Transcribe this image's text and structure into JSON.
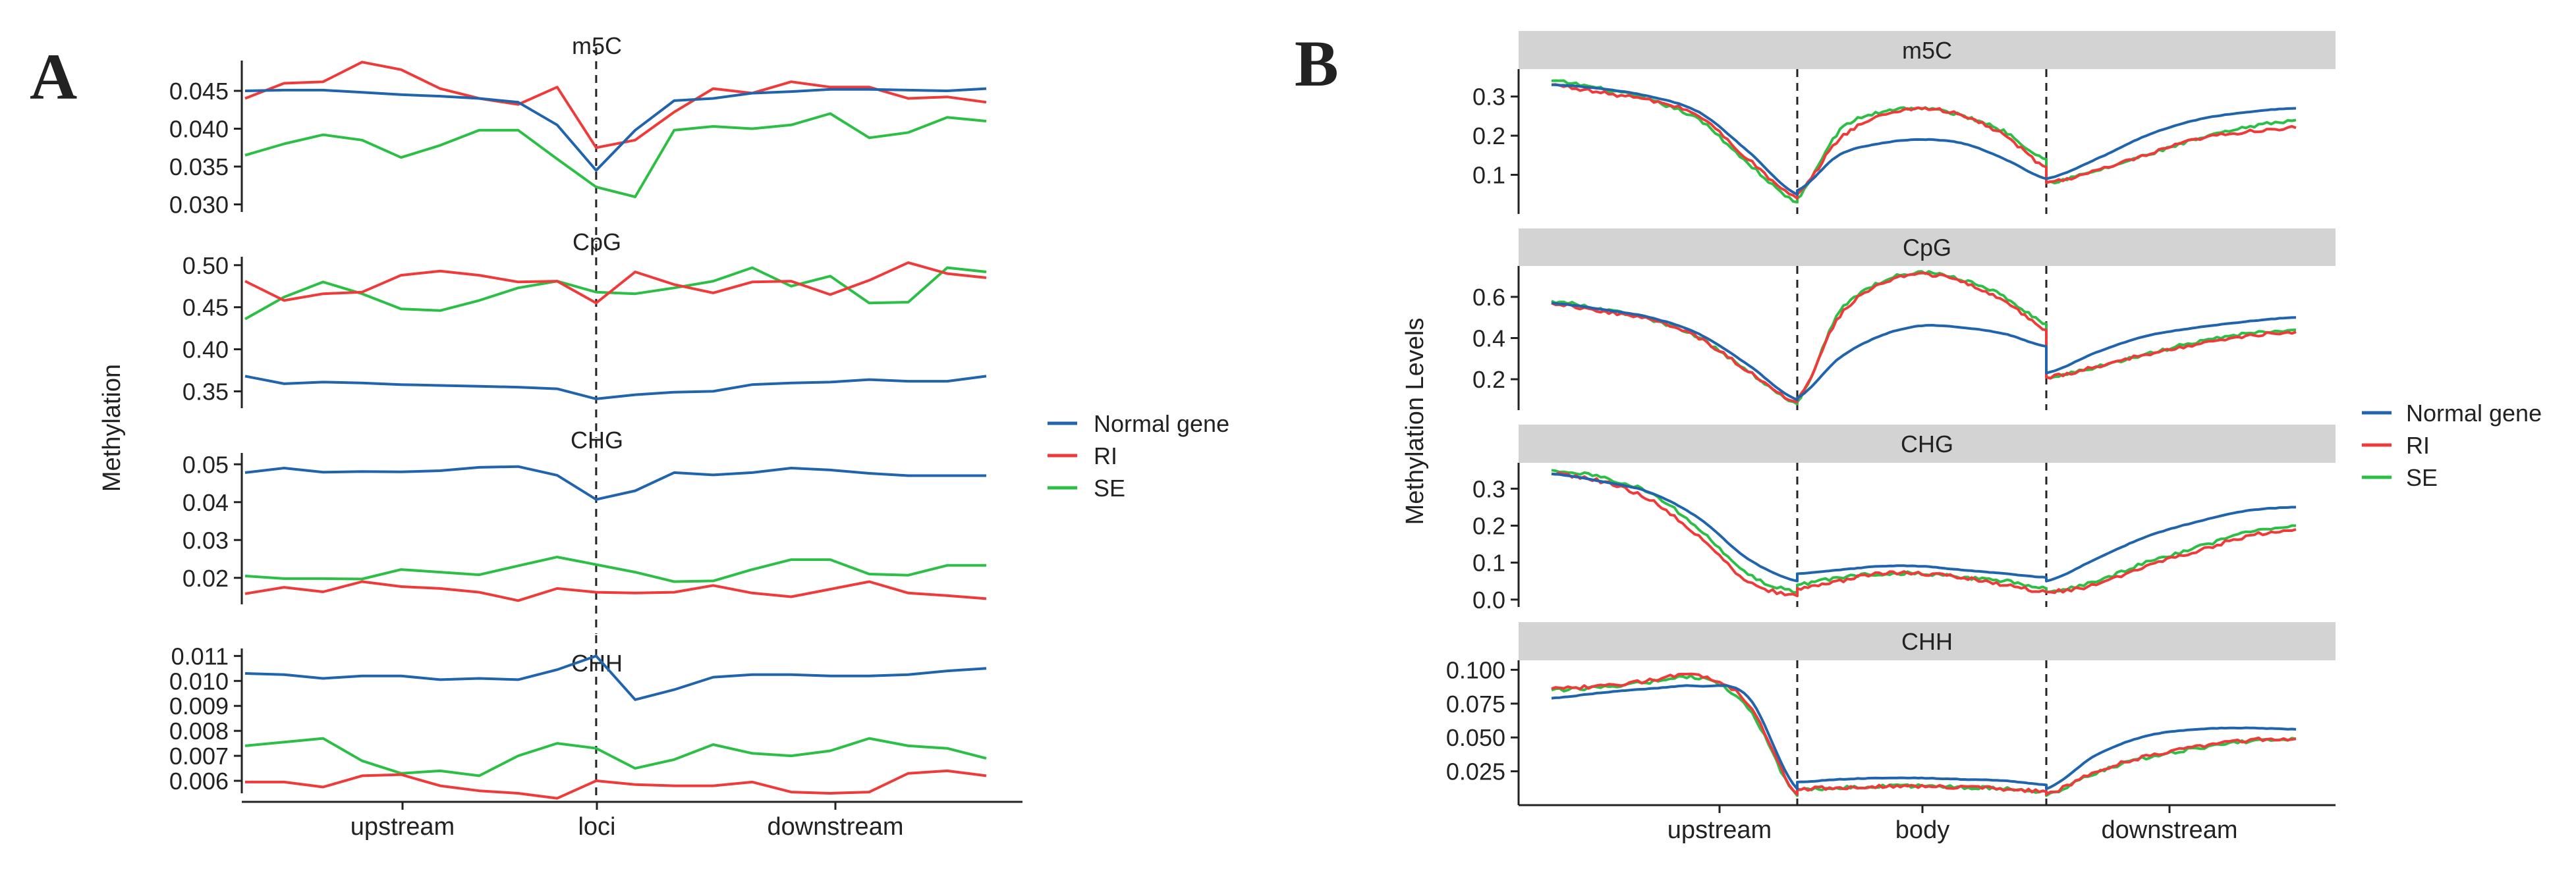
{
  "colors": {
    "normal": "#1f64ad",
    "ri": "#f03a3a",
    "se": "#2cbf46",
    "strip": "#d3d3d3",
    "axis": "#222222"
  },
  "legend_entries": [
    {
      "key": "normal",
      "label": "Normal gene"
    },
    {
      "key": "ri",
      "label": "RI"
    },
    {
      "key": "se",
      "label": "SE"
    }
  ],
  "panelA": {
    "letter": "A",
    "ylabel": "Methylation",
    "xticks": [
      "upstream",
      "loci",
      "downstream"
    ],
    "legend": [
      "Normal gene",
      "RI",
      "SE"
    ]
  },
  "panelB": {
    "letter": "B",
    "ylabel": "Methylation Levels",
    "xticks": [
      "upstream",
      "body",
      "downstream"
    ],
    "legend": [
      "Normal gene",
      "RI",
      "SE"
    ]
  },
  "chart_data": [
    {
      "type": "line",
      "panel": "A",
      "ylabel": "Methylation",
      "xticks": [
        "upstream",
        "loci",
        "downstream"
      ],
      "x_note": "20 bins; the vertical dashed line marks the loci at bin 9",
      "facets": [
        {
          "name": "m5C",
          "ylim": [
            0.029,
            0.049
          ],
          "yticks": [
            0.03,
            0.035,
            0.04,
            0.045
          ],
          "ytick_labels": [
            "0.030",
            "0.035",
            "0.040",
            "0.045"
          ],
          "series": [
            {
              "name": "Normal gene",
              "values": [
                0.045,
                0.0451,
                0.0451,
                0.0448,
                0.0445,
                0.0443,
                0.044,
                0.0435,
                0.0405,
                0.0345,
                0.0398,
                0.0437,
                0.044,
                0.0447,
                0.0449,
                0.0452,
                0.0452,
                0.0451,
                0.045,
                0.0453
              ]
            },
            {
              "name": "RI",
              "values": [
                0.044,
                0.046,
                0.0462,
                0.0488,
                0.0478,
                0.0453,
                0.044,
                0.0432,
                0.0455,
                0.0375,
                0.0385,
                0.0422,
                0.0453,
                0.0447,
                0.0462,
                0.0455,
                0.0455,
                0.044,
                0.0442,
                0.0435
              ]
            },
            {
              "name": "SE",
              "values": [
                0.0365,
                0.038,
                0.0392,
                0.0385,
                0.0362,
                0.0378,
                0.0398,
                0.0398,
                0.036,
                0.0323,
                0.031,
                0.0398,
                0.0403,
                0.04,
                0.0405,
                0.042,
                0.0388,
                0.0395,
                0.0415,
                0.041
              ]
            }
          ]
        },
        {
          "name": "CpG",
          "ylim": [
            0.33,
            0.51
          ],
          "yticks": [
            0.35,
            0.4,
            0.45,
            0.5
          ],
          "ytick_labels": [
            "0.35",
            "0.40",
            "0.45",
            "0.50"
          ],
          "series": [
            {
              "name": "Normal gene",
              "values": [
                0.368,
                0.359,
                0.361,
                0.36,
                0.358,
                0.357,
                0.356,
                0.355,
                0.353,
                0.341,
                0.346,
                0.349,
                0.35,
                0.358,
                0.36,
                0.361,
                0.364,
                0.362,
                0.362,
                0.368
              ]
            },
            {
              "name": "RI",
              "values": [
                0.481,
                0.458,
                0.466,
                0.468,
                0.488,
                0.493,
                0.488,
                0.48,
                0.481,
                0.455,
                0.492,
                0.477,
                0.467,
                0.48,
                0.481,
                0.465,
                0.482,
                0.503,
                0.49,
                0.485
              ]
            },
            {
              "name": "SE",
              "values": [
                0.436,
                0.462,
                0.48,
                0.466,
                0.448,
                0.446,
                0.458,
                0.473,
                0.481,
                0.468,
                0.466,
                0.473,
                0.481,
                0.497,
                0.475,
                0.487,
                0.455,
                0.456,
                0.497,
                0.492
              ]
            }
          ]
        },
        {
          "name": "CHG",
          "ylim": [
            0.013,
            0.053
          ],
          "yticks": [
            0.02,
            0.03,
            0.04,
            0.05
          ],
          "ytick_labels": [
            "0.02",
            "0.03",
            "0.04",
            "0.05"
          ],
          "series": [
            {
              "name": "Normal gene",
              "values": [
                0.0478,
                0.049,
                0.0479,
                0.0481,
                0.048,
                0.0483,
                0.0492,
                0.0494,
                0.0471,
                0.0407,
                0.043,
                0.0478,
                0.0472,
                0.0478,
                0.049,
                0.0485,
                0.0476,
                0.047,
                0.047,
                0.047
              ]
            },
            {
              "name": "RI",
              "values": [
                0.0158,
                0.0175,
                0.0163,
                0.019,
                0.0177,
                0.0172,
                0.0162,
                0.014,
                0.0172,
                0.0162,
                0.016,
                0.0162,
                0.018,
                0.016,
                0.015,
                0.017,
                0.019,
                0.016,
                0.0153,
                0.0145
              ]
            },
            {
              "name": "SE",
              "values": [
                0.0205,
                0.0198,
                0.0198,
                0.0197,
                0.0222,
                0.0215,
                0.0208,
                0.0232,
                0.0255,
                0.0235,
                0.0215,
                0.019,
                0.0192,
                0.0222,
                0.0248,
                0.0248,
                0.021,
                0.0207,
                0.0233,
                0.0233
              ]
            }
          ]
        },
        {
          "name": "CHH",
          "ylim": [
            0.0055,
            0.0113
          ],
          "yticks": [
            0.006,
            0.007,
            0.008,
            0.009,
            0.01,
            0.011
          ],
          "ytick_labels": [
            "0.006",
            "0.007",
            "0.008",
            "0.009",
            "0.010",
            "0.011"
          ],
          "series": [
            {
              "name": "Normal gene",
              "values": [
                0.0103,
                0.01025,
                0.0101,
                0.0102,
                0.0102,
                0.01005,
                0.0101,
                0.01005,
                0.01045,
                0.011,
                0.00925,
                0.00965,
                0.01015,
                0.01025,
                0.01025,
                0.0102,
                0.0102,
                0.01025,
                0.0104,
                0.0105
              ]
            },
            {
              "name": "RI",
              "values": [
                0.00595,
                0.00595,
                0.00575,
                0.0062,
                0.00625,
                0.0058,
                0.0056,
                0.0055,
                0.0053,
                0.006,
                0.00585,
                0.0058,
                0.0058,
                0.00595,
                0.00555,
                0.0055,
                0.00555,
                0.0063,
                0.0064,
                0.0062
              ]
            },
            {
              "name": "SE",
              "values": [
                0.0074,
                0.00755,
                0.0077,
                0.0068,
                0.0063,
                0.0064,
                0.0062,
                0.007,
                0.0075,
                0.0073,
                0.0065,
                0.00685,
                0.00745,
                0.0071,
                0.007,
                0.0072,
                0.0077,
                0.0074,
                0.0073,
                0.0069
              ]
            }
          ]
        }
      ]
    },
    {
      "type": "line",
      "panel": "B",
      "ylabel": "Methylation Levels",
      "xticks": [
        "upstream",
        "body",
        "downstream"
      ],
      "x_note": "three regions of equal width: upstream, gene body, downstream; dashed lines mark region boundaries",
      "facets": [
        {
          "name": "m5C",
          "ylim": [
            0.0,
            0.37
          ],
          "yticks": [
            0.1,
            0.2,
            0.3
          ],
          "ytick_labels": [
            "0.1",
            "0.2",
            "0.3"
          ],
          "profiles": {
            "Normal gene": {
              "upstream": [
                0.33,
                0.32,
                0.3,
                0.26,
                0.16,
                0.05
              ],
              "body": [
                0.06,
                0.15,
                0.18,
                0.19,
                0.18,
                0.14,
                0.09
              ],
              "downstream": [
                0.09,
                0.14,
                0.2,
                0.24,
                0.26,
                0.27
              ]
            },
            "RI": {
              "upstream": [
                0.33,
                0.31,
                0.29,
                0.25,
                0.14,
                0.04
              ],
              "body": [
                0.05,
                0.19,
                0.25,
                0.27,
                0.25,
                0.2,
                0.12
              ],
              "downstream": [
                0.08,
                0.11,
                0.15,
                0.19,
                0.21,
                0.22
              ]
            },
            "SE": {
              "upstream": [
                0.34,
                0.32,
                0.29,
                0.24,
                0.13,
                0.03
              ],
              "body": [
                0.04,
                0.21,
                0.26,
                0.27,
                0.25,
                0.21,
                0.14
              ],
              "downstream": [
                0.08,
                0.11,
                0.15,
                0.19,
                0.22,
                0.24
              ]
            }
          }
        },
        {
          "name": "CpG",
          "ylim": [
            0.05,
            0.75
          ],
          "yticks": [
            0.2,
            0.4,
            0.6
          ],
          "ytick_labels": [
            "0.2",
            "0.4",
            "0.6"
          ],
          "profiles": {
            "Normal gene": {
              "upstream": [
                0.57,
                0.54,
                0.5,
                0.42,
                0.27,
                0.1
              ],
              "body": [
                0.11,
                0.3,
                0.41,
                0.46,
                0.45,
                0.42,
                0.36
              ],
              "downstream": [
                0.23,
                0.33,
                0.41,
                0.45,
                0.48,
                0.5
              ]
            },
            "RI": {
              "upstream": [
                0.57,
                0.53,
                0.49,
                0.4,
                0.24,
                0.09
              ],
              "body": [
                0.1,
                0.5,
                0.66,
                0.71,
                0.67,
                0.58,
                0.44
              ],
              "downstream": [
                0.21,
                0.26,
                0.32,
                0.37,
                0.41,
                0.43
              ]
            },
            "SE": {
              "upstream": [
                0.58,
                0.54,
                0.49,
                0.4,
                0.24,
                0.08
              ],
              "body": [
                0.09,
                0.52,
                0.67,
                0.72,
                0.68,
                0.6,
                0.47
              ],
              "downstream": [
                0.21,
                0.26,
                0.32,
                0.38,
                0.42,
                0.44
              ]
            }
          }
        },
        {
          "name": "CHG",
          "ylim": [
            -0.02,
            0.37
          ],
          "yticks": [
            0.0,
            0.1,
            0.2,
            0.3
          ],
          "ytick_labels": [
            "0.0",
            "0.1",
            "0.2",
            "0.3"
          ],
          "profiles": {
            "Normal gene": {
              "upstream": [
                0.34,
                0.32,
                0.29,
                0.22,
                0.11,
                0.05
              ],
              "body": [
                0.07,
                0.08,
                0.09,
                0.09,
                0.08,
                0.07,
                0.06
              ],
              "downstream": [
                0.05,
                0.11,
                0.17,
                0.21,
                0.24,
                0.25
              ]
            },
            "RI": {
              "upstream": [
                0.34,
                0.32,
                0.27,
                0.17,
                0.05,
                0.01
              ],
              "body": [
                0.03,
                0.05,
                0.07,
                0.07,
                0.06,
                0.04,
                0.02
              ],
              "downstream": [
                0.02,
                0.04,
                0.09,
                0.13,
                0.17,
                0.19
              ]
            },
            "SE": {
              "upstream": [
                0.35,
                0.33,
                0.29,
                0.19,
                0.07,
                0.02
              ],
              "body": [
                0.04,
                0.06,
                0.07,
                0.07,
                0.06,
                0.05,
                0.03
              ],
              "downstream": [
                0.02,
                0.05,
                0.1,
                0.14,
                0.18,
                0.2
              ]
            }
          }
        },
        {
          "name": "CHH",
          "ylim": [
            0.0,
            0.107
          ],
          "yticks": [
            0.025,
            0.05,
            0.075,
            0.1
          ],
          "ytick_labels": [
            "0.025",
            "0.050",
            "0.075",
            "0.100"
          ],
          "profiles": {
            "Normal gene": {
              "upstream": [
                0.079,
                0.083,
                0.086,
                0.088,
                0.08,
                0.012
              ],
              "body": [
                0.017,
                0.019,
                0.02,
                0.02,
                0.019,
                0.018,
                0.015
              ],
              "downstream": [
                0.012,
                0.037,
                0.051,
                0.056,
                0.057,
                0.056
              ]
            },
            "RI": {
              "upstream": [
                0.086,
                0.088,
                0.092,
                0.096,
                0.075,
                0.008
              ],
              "body": [
                0.012,
                0.013,
                0.014,
                0.014,
                0.013,
                0.012,
                0.01
              ],
              "downstream": [
                0.008,
                0.025,
                0.036,
                0.043,
                0.048,
                0.049
              ]
            },
            "SE": {
              "upstream": [
                0.085,
                0.087,
                0.091,
                0.094,
                0.072,
                0.007
              ],
              "body": [
                0.011,
                0.013,
                0.014,
                0.014,
                0.013,
                0.012,
                0.01
              ],
              "downstream": [
                0.007,
                0.024,
                0.035,
                0.042,
                0.047,
                0.049
              ]
            }
          }
        }
      ]
    }
  ]
}
